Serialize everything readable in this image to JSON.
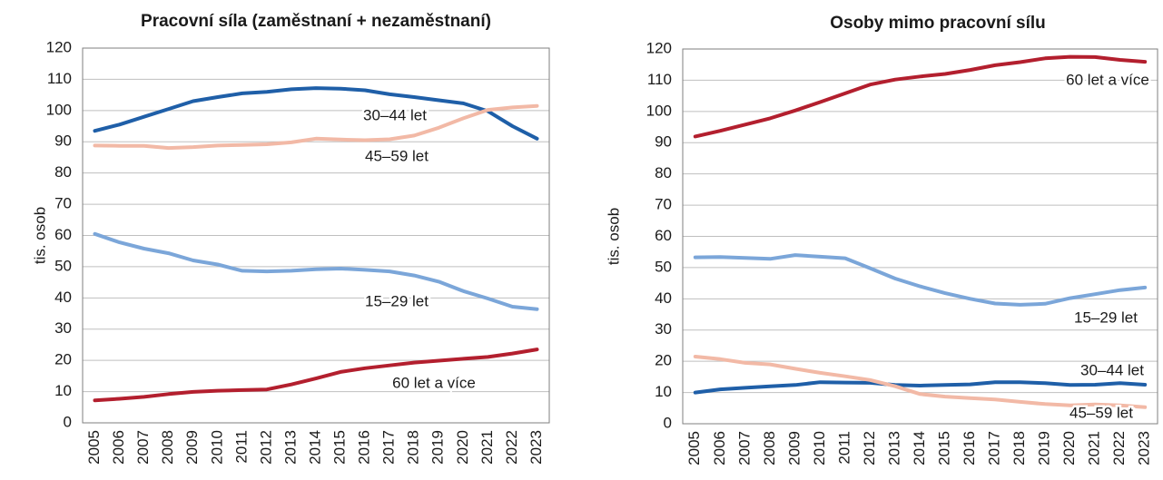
{
  "chart_data": [
    {
      "type": "line",
      "title": "Pracovní síla (zaměstnaní + nezaměstnaní)",
      "y_label": "tis. osob",
      "categories": [
        "2005",
        "2006",
        "2007",
        "2008",
        "2009",
        "2010",
        "2011",
        "2012",
        "2013",
        "2014",
        "2015",
        "2016",
        "2017",
        "2018",
        "2019",
        "2020",
        "2021",
        "2022",
        "2023"
      ],
      "ylim": [
        0,
        120
      ],
      "yticks": [
        0,
        10,
        20,
        30,
        40,
        50,
        60,
        70,
        80,
        90,
        100,
        110,
        120
      ],
      "grid": true,
      "series": [
        {
          "name": "30–44 let",
          "color": "#1f5fa8",
          "values": [
            93.5,
            95.5,
            98,
            100.5,
            103,
            104.3,
            105.5,
            106,
            106.8,
            107.2,
            107,
            106.5,
            105.2,
            104.3,
            103.3,
            102.3,
            99.8,
            95,
            91
          ]
        },
        {
          "name": "45–59 let",
          "color": "#f2b9a6",
          "values": [
            88.8,
            88.7,
            88.7,
            88,
            88.3,
            88.8,
            89,
            89.2,
            89.8,
            91,
            90.7,
            90.5,
            90.8,
            92,
            94.5,
            97.5,
            100.2,
            101,
            101.5
          ]
        },
        {
          "name": "15–29 let",
          "color": "#7ba6d9",
          "values": [
            60.5,
            57.8,
            55.8,
            54.3,
            52,
            50.7,
            48.7,
            48.5,
            48.7,
            49.2,
            49.4,
            49,
            48.5,
            47.2,
            45.2,
            42.2,
            39.8,
            37.2,
            36.4
          ]
        },
        {
          "name": "60 let a více",
          "color": "#b31f2e",
          "values": [
            7.2,
            7.7,
            8.3,
            9.2,
            9.9,
            10.3,
            10.5,
            10.7,
            12.3,
            14.2,
            16.3,
            17.5,
            18.4,
            19.3,
            19.9,
            20.5,
            21.1,
            22.2,
            23.5
          ]
        }
      ]
    },
    {
      "type": "line",
      "title": "Osoby mimo pracovní sílu",
      "y_label": "tis. osob",
      "categories": [
        "2005",
        "2006",
        "2007",
        "2008",
        "2009",
        "2010",
        "2011",
        "2012",
        "2013",
        "2014",
        "2015",
        "2016",
        "2017",
        "2018",
        "2019",
        "2020",
        "2021",
        "2022",
        "2023"
      ],
      "ylim": [
        0,
        120
      ],
      "yticks": [
        0,
        10,
        20,
        30,
        40,
        50,
        60,
        70,
        80,
        90,
        100,
        110,
        120
      ],
      "grid": true,
      "series": [
        {
          "name": "30–44 let",
          "color": "#1f5fa8",
          "values": [
            10,
            11,
            11.5,
            12,
            12.4,
            13.3,
            13.2,
            13.1,
            12.4,
            12.2,
            12.4,
            12.6,
            13.3,
            13.3,
            13,
            12.4,
            12.5,
            13,
            12.5
          ]
        },
        {
          "name": "45–59 let",
          "color": "#f2b9a6",
          "values": [
            21.5,
            20.7,
            19.5,
            19,
            17.6,
            16.3,
            15.2,
            14,
            12,
            9.5,
            8.7,
            8.2,
            7.8,
            7,
            6.3,
            5.9,
            6.2,
            5.9,
            5.3
          ]
        },
        {
          "name": "15–29 let",
          "color": "#7ba6d9",
          "values": [
            53.3,
            53.4,
            53.1,
            52.8,
            54,
            53.5,
            53,
            49.8,
            46.5,
            44,
            41.8,
            40,
            38.5,
            38.1,
            38.4,
            40.2,
            41.5,
            42.8,
            43.6
          ]
        },
        {
          "name": "60 let a více",
          "color": "#b31f2e",
          "values": [
            92,
            93.8,
            95.8,
            97.8,
            100.3,
            103,
            105.8,
            108.6,
            110.2,
            111.2,
            112,
            113.3,
            114.8,
            115.8,
            117,
            117.5,
            117.4,
            116.5,
            115.9
          ]
        }
      ]
    }
  ]
}
